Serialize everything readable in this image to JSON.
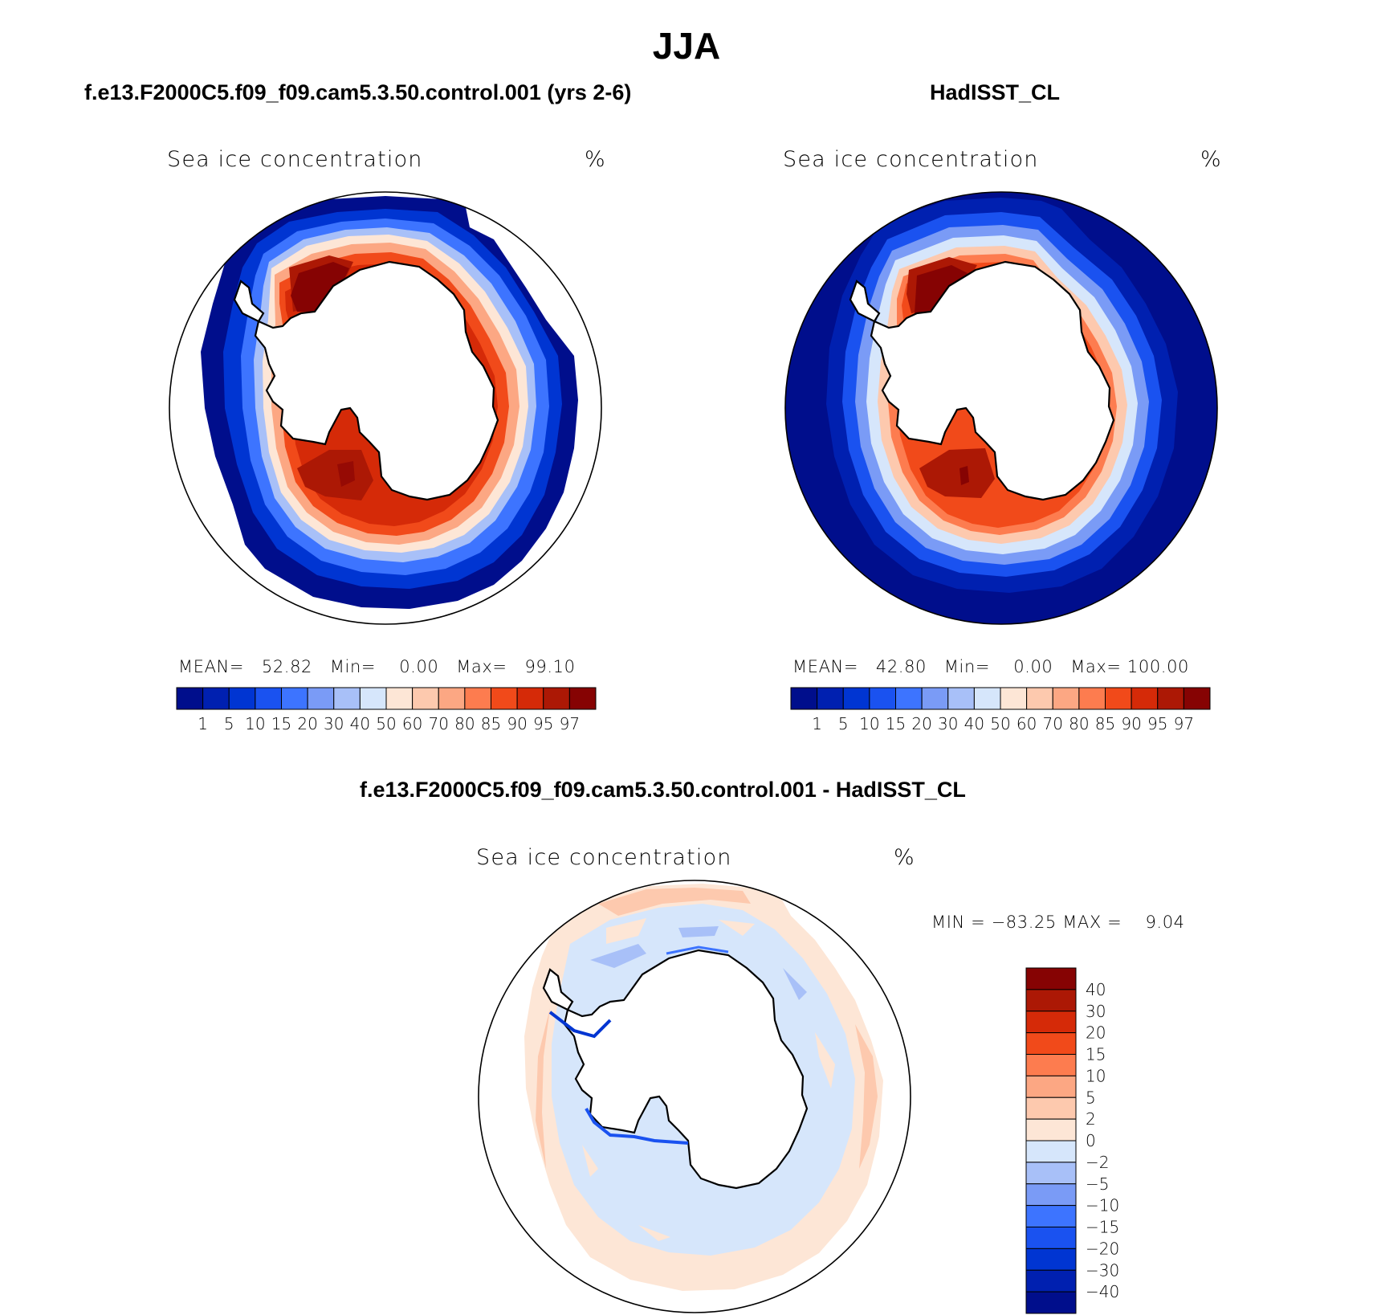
{
  "season": "JJA",
  "panels": [
    {
      "title": "f.e13.F2000C5.f09_f09.cam5.3.50.control.001 (yrs 2-6)",
      "subtitle": "Sea ice concentration",
      "units": "%",
      "stats": {
        "mean_label": "MEAN=",
        "mean": "52.82",
        "min_label": "Min=",
        "min": "0.00",
        "max_label": "Max=",
        "max": "99.10"
      }
    },
    {
      "title": "HadISST_CL",
      "subtitle": "Sea ice concentration",
      "units": "%",
      "stats": {
        "mean_label": "MEAN=",
        "mean": "42.80",
        "min_label": "Min=",
        "min": "0.00",
        "max_label": "Max=",
        "max": "100.00"
      }
    },
    {
      "title": "f.e13.F2000C5.f09_f09.cam5.3.50.control.001 - HadISST_CL",
      "subtitle": "Sea ice concentration",
      "units": "%",
      "stats": {
        "min_label": "MIN =",
        "min": "−83.25",
        "max_label": "MAX =",
        "max": "9.04"
      }
    }
  ],
  "colorbar_top": {
    "levels": [
      "1",
      "5",
      "10",
      "15",
      "20",
      "30",
      "40",
      "50",
      "60",
      "70",
      "80",
      "85",
      "90",
      "95",
      "97"
    ],
    "colors": [
      "#000e8c",
      "#0020b0",
      "#0035d2",
      "#1a52f0",
      "#3d74ff",
      "#7a9bf6",
      "#a8c0f8",
      "#d6e6fb",
      "#fde6d6",
      "#fdc9ae",
      "#fca783",
      "#fd7c4f",
      "#f14a1a",
      "#d52a08",
      "#ac1805",
      "#860303"
    ]
  },
  "colorbar_diff": {
    "levels": [
      "40",
      "30",
      "20",
      "15",
      "10",
      "5",
      "2",
      "0",
      "−2",
      "−5",
      "−10",
      "−15",
      "−20",
      "−30",
      "−40"
    ],
    "colors": [
      "#860303",
      "#ac1805",
      "#d52a08",
      "#f14a1a",
      "#fd7c4f",
      "#fca783",
      "#fdc9ae",
      "#fde6d6",
      "#d6e6fb",
      "#a8c0f8",
      "#7a9bf6",
      "#3d74ff",
      "#1a52f0",
      "#0035d2",
      "#0020b0",
      "#000e8c"
    ]
  }
}
